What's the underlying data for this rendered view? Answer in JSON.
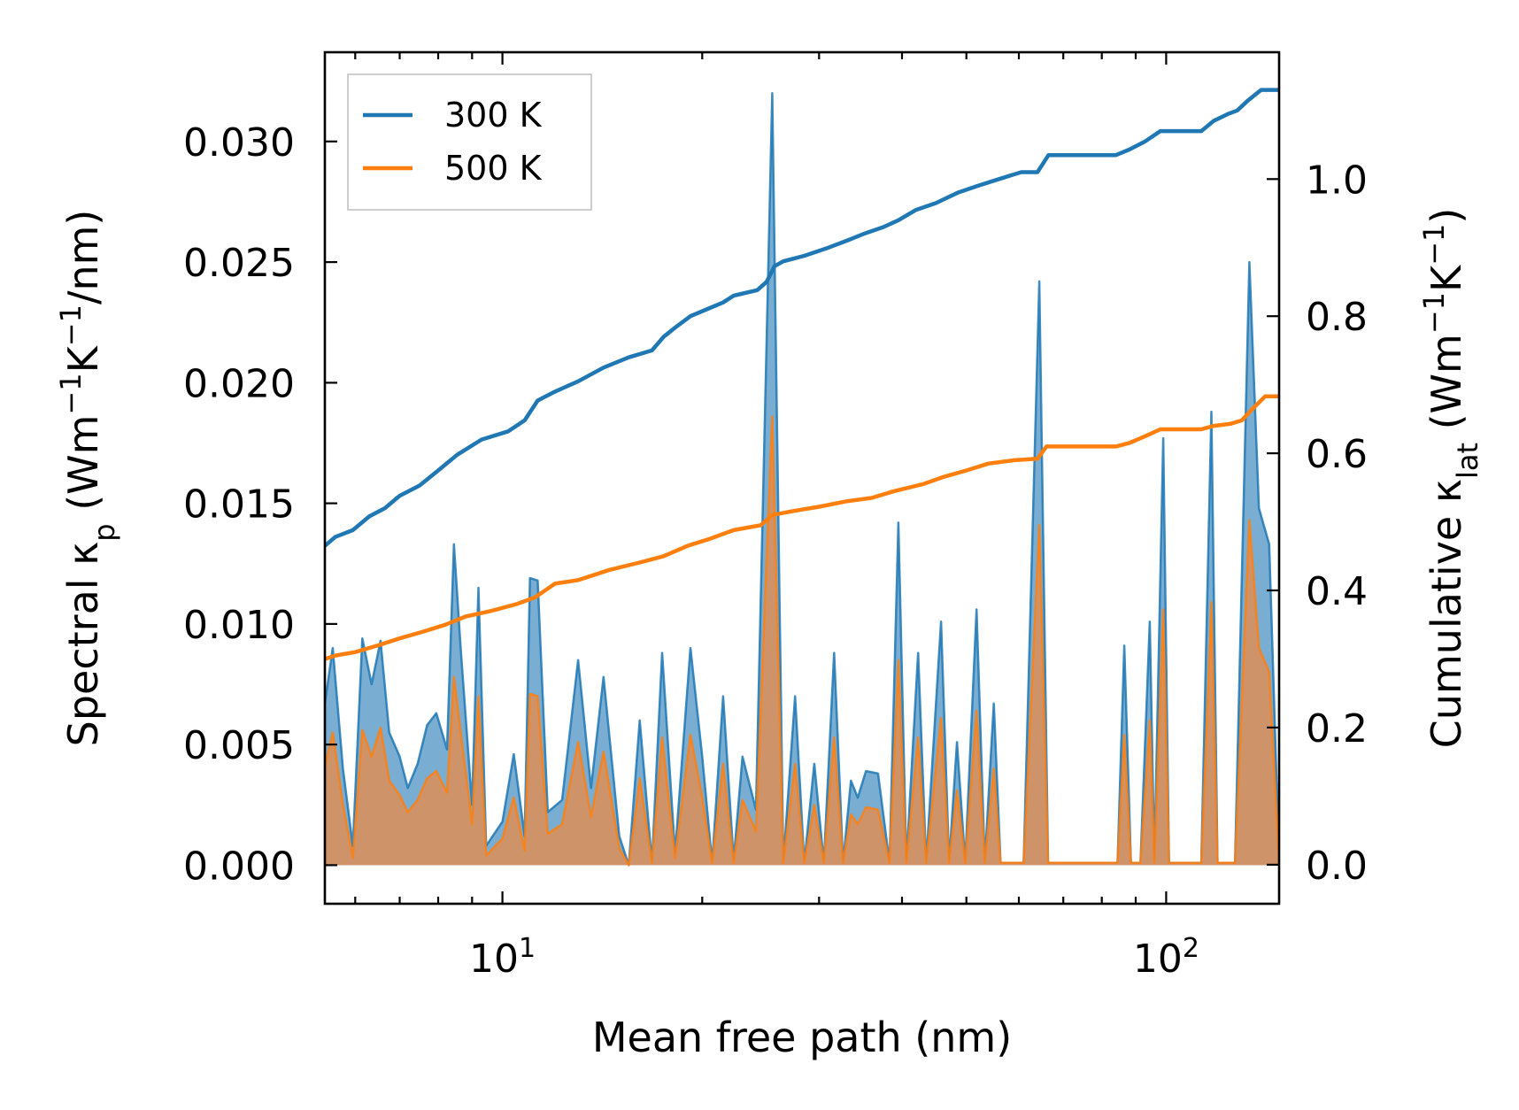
{
  "chart_data": {
    "type": "line",
    "xlabel": "Mean free path (nm)",
    "xscale": "log",
    "xlim": [
      5.4,
      148
    ],
    "x_ticks": [
      {
        "value": 10,
        "base": "10",
        "exp": "1"
      },
      {
        "value": 100,
        "base": "10",
        "exp": "2"
      }
    ],
    "y_left": {
      "label_parts": [
        "Spectral κ",
        "p",
        " (Wm",
        "−1",
        "K",
        "−1",
        "/nm)"
      ],
      "ylim": [
        -0.0016,
        0.0337
      ],
      "ticks": [
        0.0,
        0.005,
        0.01,
        0.015,
        0.02,
        0.025,
        0.03
      ],
      "tick_labels": [
        "0.000",
        "0.005",
        "0.010",
        "0.015",
        "0.020",
        "0.025",
        "0.030"
      ]
    },
    "y_right": {
      "label_parts": [
        "Cumulative κ",
        "lat",
        " (Wm",
        "−1",
        "K",
        "−1",
        ")"
      ],
      "ylim": [
        -0.057,
        1.185
      ],
      "ticks": [
        0.0,
        0.2,
        0.4,
        0.6,
        0.8,
        1.0
      ],
      "tick_labels": [
        "0.0",
        "0.2",
        "0.4",
        "0.6",
        "0.8",
        "1.0"
      ]
    },
    "legend": {
      "location": "upper-left",
      "entries": [
        {
          "label": "300 K",
          "color": "#1f77b4"
        },
        {
          "label": "500 K",
          "color": "#ff7f0e"
        }
      ]
    },
    "series": [
      {
        "name": "300 K",
        "color": "#1f77b4",
        "fill_color": "#1f77b4",
        "spectral": [
          [
            5.4,
            0.0067
          ],
          [
            5.55,
            0.009
          ],
          [
            5.75,
            0.004
          ],
          [
            5.95,
            0.0008
          ],
          [
            6.15,
            0.0094
          ],
          [
            6.35,
            0.0075
          ],
          [
            6.55,
            0.0093
          ],
          [
            6.75,
            0.0055
          ],
          [
            7.0,
            0.0045
          ],
          [
            7.2,
            0.0032
          ],
          [
            7.45,
            0.0042
          ],
          [
            7.7,
            0.0058
          ],
          [
            7.95,
            0.0063
          ],
          [
            8.25,
            0.0048
          ],
          [
            8.45,
            0.0133
          ],
          [
            8.65,
            0.009
          ],
          [
            9.0,
            0.0025
          ],
          [
            9.2,
            0.0115
          ],
          [
            9.45,
            0.0008
          ],
          [
            10.0,
            0.0018
          ],
          [
            10.4,
            0.0046
          ],
          [
            10.8,
            0.0012
          ],
          [
            11.0,
            0.0119
          ],
          [
            11.3,
            0.0118
          ],
          [
            11.7,
            0.0022
          ],
          [
            12.3,
            0.0027
          ],
          [
            13.0,
            0.0085
          ],
          [
            13.6,
            0.0032
          ],
          [
            14.2,
            0.0078
          ],
          [
            15.0,
            0.0012
          ],
          [
            15.5,
            0.0
          ],
          [
            16.1,
            0.006
          ],
          [
            16.8,
            0.0001
          ],
          [
            17.4,
            0.0088
          ],
          [
            18.2,
            0.0005
          ],
          [
            19.2,
            0.009
          ],
          [
            20.0,
            0.0045
          ],
          [
            20.7,
            0.0001
          ],
          [
            21.5,
            0.007
          ],
          [
            22.3,
            0.0002
          ],
          [
            23.0,
            0.0045
          ],
          [
            24.1,
            0.0023
          ],
          [
            25.5,
            0.032
          ],
          [
            26.5,
            0.0001
          ],
          [
            27.6,
            0.007
          ],
          [
            28.5,
            0.0001
          ],
          [
            29.5,
            0.0042
          ],
          [
            30.5,
            0.0001
          ],
          [
            31.6,
            0.0088
          ],
          [
            32.6,
            0.0001
          ],
          [
            33.5,
            0.0035
          ],
          [
            34.3,
            0.0028
          ],
          [
            35.3,
            0.0039
          ],
          [
            36.8,
            0.0038
          ],
          [
            38.3,
            0.0001
          ],
          [
            39.5,
            0.0142
          ],
          [
            40.6,
            0.0001
          ],
          [
            42.3,
            0.0088
          ],
          [
            43.5,
            0.0001
          ],
          [
            45.8,
            0.0101
          ],
          [
            47.1,
            0.0001
          ],
          [
            48.4,
            0.0051
          ],
          [
            49.8,
            0.0001
          ],
          [
            51.8,
            0.0106
          ],
          [
            53.3,
            0.0001
          ],
          [
            55.0,
            0.0067
          ],
          [
            56.3,
            0.0001
          ],
          [
            61.0,
            0.0001
          ],
          [
            64.4,
            0.0242
          ],
          [
            66.4,
            0.0001
          ],
          [
            73.0,
            0.0001
          ],
          [
            84.5,
            0.0001
          ],
          [
            86.5,
            0.0091
          ],
          [
            88.5,
            0.0001
          ],
          [
            91.5,
            0.0001
          ],
          [
            94.5,
            0.0101
          ],
          [
            96.0,
            0.0001
          ],
          [
            99.0,
            0.0177
          ],
          [
            101.0,
            0.0001
          ],
          [
            113.0,
            0.0001
          ],
          [
            117.0,
            0.0188
          ],
          [
            119.5,
            0.0001
          ],
          [
            127.0,
            0.0001
          ],
          [
            133.5,
            0.025
          ],
          [
            138.0,
            0.0148
          ],
          [
            143.0,
            0.0133
          ],
          [
            148.0,
            0.0001
          ]
        ],
        "cumulative": [
          [
            5.4,
            0.465
          ],
          [
            5.6,
            0.478
          ],
          [
            5.95,
            0.488
          ],
          [
            6.3,
            0.508
          ],
          [
            6.65,
            0.52
          ],
          [
            7.0,
            0.538
          ],
          [
            7.5,
            0.553
          ],
          [
            8.0,
            0.575
          ],
          [
            8.55,
            0.598
          ],
          [
            9.3,
            0.62
          ],
          [
            10.2,
            0.632
          ],
          [
            10.8,
            0.648
          ],
          [
            11.3,
            0.677
          ],
          [
            12.0,
            0.69
          ],
          [
            13.0,
            0.705
          ],
          [
            14.2,
            0.725
          ],
          [
            15.5,
            0.74
          ],
          [
            16.8,
            0.75
          ],
          [
            17.5,
            0.77
          ],
          [
            18.3,
            0.785
          ],
          [
            19.2,
            0.8
          ],
          [
            20.3,
            0.81
          ],
          [
            21.5,
            0.82
          ],
          [
            22.3,
            0.83
          ],
          [
            24.2,
            0.838
          ],
          [
            25.0,
            0.85
          ],
          [
            25.7,
            0.873
          ],
          [
            26.5,
            0.88
          ],
          [
            28.5,
            0.888
          ],
          [
            31.0,
            0.9
          ],
          [
            33.0,
            0.91
          ],
          [
            35.0,
            0.92
          ],
          [
            37.5,
            0.93
          ],
          [
            39.5,
            0.94
          ],
          [
            42.0,
            0.955
          ],
          [
            45.0,
            0.965
          ],
          [
            48.5,
            0.98
          ],
          [
            52.0,
            0.99
          ],
          [
            56.0,
            1.0
          ],
          [
            60.5,
            1.01
          ],
          [
            64.0,
            1.01
          ],
          [
            66.5,
            1.035
          ],
          [
            75.0,
            1.035
          ],
          [
            84.0,
            1.035
          ],
          [
            88.0,
            1.043
          ],
          [
            93.0,
            1.055
          ],
          [
            98.0,
            1.07
          ],
          [
            113.0,
            1.07
          ],
          [
            118.0,
            1.085
          ],
          [
            124.0,
            1.095
          ],
          [
            128.0,
            1.1
          ],
          [
            133.0,
            1.115
          ],
          [
            139.0,
            1.13
          ],
          [
            148.0,
            1.13
          ]
        ]
      },
      {
        "name": "500 K",
        "color": "#ff7f0e",
        "fill_color": "#d8905d",
        "spectral": [
          [
            5.4,
            0.0041
          ],
          [
            5.55,
            0.0055
          ],
          [
            5.75,
            0.0025
          ],
          [
            5.95,
            0.0003
          ],
          [
            6.15,
            0.0056
          ],
          [
            6.35,
            0.0045
          ],
          [
            6.55,
            0.0057
          ],
          [
            6.75,
            0.0035
          ],
          [
            7.0,
            0.0029
          ],
          [
            7.2,
            0.0022
          ],
          [
            7.45,
            0.0027
          ],
          [
            7.7,
            0.0036
          ],
          [
            7.95,
            0.0039
          ],
          [
            8.25,
            0.003
          ],
          [
            8.45,
            0.0078
          ],
          [
            8.65,
            0.0055
          ],
          [
            9.0,
            0.0017
          ],
          [
            9.2,
            0.007
          ],
          [
            9.45,
            0.0004
          ],
          [
            10.0,
            0.0011
          ],
          [
            10.4,
            0.0028
          ],
          [
            10.8,
            0.0006
          ],
          [
            11.0,
            0.0071
          ],
          [
            11.3,
            0.007
          ],
          [
            11.7,
            0.0013
          ],
          [
            12.3,
            0.0017
          ],
          [
            13.0,
            0.0051
          ],
          [
            13.6,
            0.002
          ],
          [
            14.2,
            0.0047
          ],
          [
            15.0,
            0.0007
          ],
          [
            15.5,
            0.0
          ],
          [
            16.1,
            0.0036
          ],
          [
            16.8,
            0.0001
          ],
          [
            17.4,
            0.0053
          ],
          [
            18.2,
            0.0003
          ],
          [
            19.2,
            0.0054
          ],
          [
            20.0,
            0.0028
          ],
          [
            20.7,
            0.0001
          ],
          [
            21.5,
            0.0042
          ],
          [
            22.3,
            0.0001
          ],
          [
            23.0,
            0.0027
          ],
          [
            24.1,
            0.0014
          ],
          [
            25.5,
            0.0186
          ],
          [
            26.5,
            0.0001
          ],
          [
            27.6,
            0.0042
          ],
          [
            28.5,
            0.0001
          ],
          [
            29.5,
            0.0025
          ],
          [
            30.5,
            0.0001
          ],
          [
            31.6,
            0.0053
          ],
          [
            32.6,
            0.0001
          ],
          [
            33.5,
            0.0021
          ],
          [
            34.3,
            0.0017
          ],
          [
            35.3,
            0.0024
          ],
          [
            36.8,
            0.0023
          ],
          [
            38.3,
            0.0001
          ],
          [
            39.5,
            0.0085
          ],
          [
            40.6,
            0.0001
          ],
          [
            42.3,
            0.0053
          ],
          [
            43.5,
            0.0001
          ],
          [
            45.8,
            0.0061
          ],
          [
            47.1,
            0.0001
          ],
          [
            48.4,
            0.0031
          ],
          [
            49.8,
            0.0001
          ],
          [
            51.8,
            0.0064
          ],
          [
            53.3,
            0.0001
          ],
          [
            55.0,
            0.004
          ],
          [
            56.3,
            0.0001
          ],
          [
            61.0,
            0.0001
          ],
          [
            64.4,
            0.0141
          ],
          [
            66.4,
            0.0001
          ],
          [
            73.0,
            0.0001
          ],
          [
            84.5,
            0.0001
          ],
          [
            86.5,
            0.0054
          ],
          [
            88.5,
            0.0001
          ],
          [
            91.5,
            0.0001
          ],
          [
            94.5,
            0.006
          ],
          [
            96.0,
            0.0001
          ],
          [
            99.0,
            0.0106
          ],
          [
            101.0,
            0.0001
          ],
          [
            113.0,
            0.0001
          ],
          [
            117.0,
            0.0109
          ],
          [
            119.5,
            0.0001
          ],
          [
            127.0,
            0.0001
          ],
          [
            133.5,
            0.0143
          ],
          [
            138.0,
            0.009
          ],
          [
            143.0,
            0.008
          ],
          [
            148.0,
            0.0001
          ]
        ],
        "cumulative": [
          [
            5.4,
            0.3
          ],
          [
            5.6,
            0.305
          ],
          [
            6.0,
            0.31
          ],
          [
            6.5,
            0.32
          ],
          [
            7.0,
            0.33
          ],
          [
            7.6,
            0.34
          ],
          [
            8.2,
            0.35
          ],
          [
            8.8,
            0.362
          ],
          [
            9.6,
            0.37
          ],
          [
            10.5,
            0.38
          ],
          [
            11.2,
            0.39
          ],
          [
            12.0,
            0.41
          ],
          [
            13.0,
            0.415
          ],
          [
            14.5,
            0.43
          ],
          [
            16.0,
            0.44
          ],
          [
            17.5,
            0.45
          ],
          [
            19.0,
            0.465
          ],
          [
            20.5,
            0.475
          ],
          [
            22.3,
            0.488
          ],
          [
            24.5,
            0.495
          ],
          [
            25.5,
            0.51
          ],
          [
            27.5,
            0.516
          ],
          [
            30.0,
            0.522
          ],
          [
            33.0,
            0.53
          ],
          [
            36.0,
            0.535
          ],
          [
            39.0,
            0.545
          ],
          [
            43.0,
            0.555
          ],
          [
            46.0,
            0.565
          ],
          [
            50.0,
            0.575
          ],
          [
            54.0,
            0.585
          ],
          [
            59.0,
            0.59
          ],
          [
            64.0,
            0.592
          ],
          [
            66.0,
            0.61
          ],
          [
            75.0,
            0.61
          ],
          [
            84.0,
            0.61
          ],
          [
            88.0,
            0.615
          ],
          [
            93.0,
            0.625
          ],
          [
            98.0,
            0.635
          ],
          [
            113.0,
            0.635
          ],
          [
            118.0,
            0.64
          ],
          [
            125.0,
            0.643
          ],
          [
            130.0,
            0.648
          ],
          [
            135.0,
            0.665
          ],
          [
            141.0,
            0.683
          ],
          [
            148.0,
            0.683
          ]
        ]
      }
    ]
  }
}
